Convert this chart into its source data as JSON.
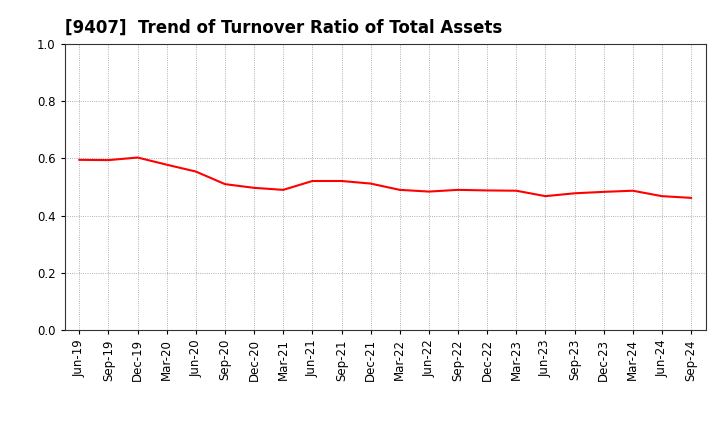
{
  "title": "[9407]  Trend of Turnover Ratio of Total Assets",
  "x_labels": [
    "Jun-19",
    "Sep-19",
    "Dec-19",
    "Mar-20",
    "Jun-20",
    "Sep-20",
    "Dec-20",
    "Mar-21",
    "Jun-21",
    "Sep-21",
    "Dec-21",
    "Mar-22",
    "Jun-22",
    "Sep-22",
    "Dec-22",
    "Mar-23",
    "Jun-23",
    "Sep-23",
    "Dec-23",
    "Mar-24",
    "Jun-24",
    "Sep-24"
  ],
  "y_values": [
    0.595,
    0.594,
    0.603,
    0.578,
    0.554,
    0.51,
    0.497,
    0.49,
    0.521,
    0.521,
    0.512,
    0.49,
    0.484,
    0.49,
    0.488,
    0.487,
    0.468,
    0.478,
    0.483,
    0.487,
    0.468,
    0.462
  ],
  "line_color": "#FF0000",
  "line_width": 1.5,
  "ylim": [
    0.0,
    1.0
  ],
  "yticks": [
    0.0,
    0.2,
    0.4,
    0.6,
    0.8,
    1.0
  ],
  "bg_color": "#FFFFFF",
  "grid_color": "#999999",
  "title_fontsize": 12,
  "tick_fontsize": 8.5
}
